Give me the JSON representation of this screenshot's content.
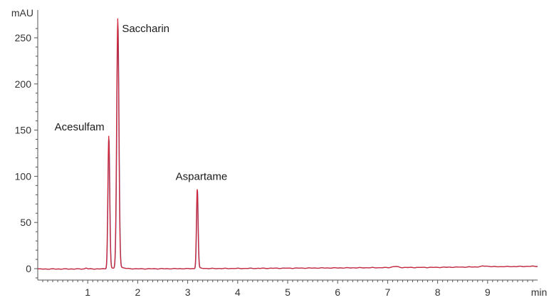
{
  "chart_data": {
    "type": "line",
    "title": "",
    "ylabel": "mAU",
    "xlabel": "min",
    "xlim": [
      0,
      10.0
    ],
    "ylim": [
      -12,
      270
    ],
    "x_ticks": [
      1,
      2,
      3,
      4,
      5,
      6,
      7,
      8,
      9
    ],
    "y_ticks": [
      0,
      50,
      100,
      150,
      200,
      250
    ],
    "grid": false,
    "colors": {
      "trace_a": "#d0283c",
      "trace_b": "#4a4f8c",
      "axis": "#555555"
    },
    "peaks": [
      {
        "name": "Acesulfam",
        "x": 1.42,
        "y": 142,
        "width": 0.018
      },
      {
        "name": "Saccharin",
        "x": 1.6,
        "y": 267,
        "width": 0.022
      },
      {
        "name": "Aspartame",
        "x": 3.19,
        "y": 86,
        "width": 0.016
      }
    ],
    "minor_bumps": [
      {
        "x": 0.97,
        "y": 1.0,
        "width": 0.02
      },
      {
        "x": 7.15,
        "y": 1.2,
        "width": 0.06
      },
      {
        "x": 8.95,
        "y": 0.8,
        "width": 0.08
      }
    ],
    "baseline": [
      {
        "x": 0.0,
        "y": -0.4
      },
      {
        "x": 1.0,
        "y": -0.3
      },
      {
        "x": 2.0,
        "y": -0.2
      },
      {
        "x": 4.0,
        "y": 0.2
      },
      {
        "x": 6.0,
        "y": 0.8
      },
      {
        "x": 8.0,
        "y": 1.4
      },
      {
        "x": 10.0,
        "y": 2.6
      }
    ]
  }
}
